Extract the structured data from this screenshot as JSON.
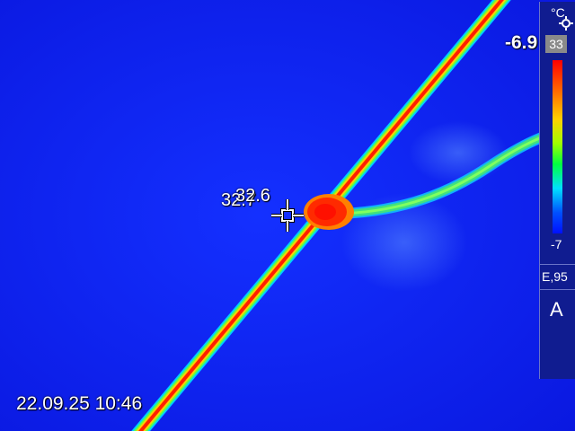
{
  "overlay": {
    "datetime": "22.09.25 10:46",
    "min_temp": "-6.9",
    "spot_label_under": "32.7",
    "spot_label_over": "32.6"
  },
  "sidebar": {
    "unit": "°C",
    "scale_max": "33",
    "scale_min": "-7",
    "emissivity": "E,95",
    "mode": "A"
  },
  "icons": {
    "crosshair": "crosshair-icon",
    "gear": "gear-icon"
  },
  "colors": {
    "background": "#0a1cf0",
    "hot": "#ff2000",
    "warm": "#ffd000",
    "cool": "#20e060"
  }
}
